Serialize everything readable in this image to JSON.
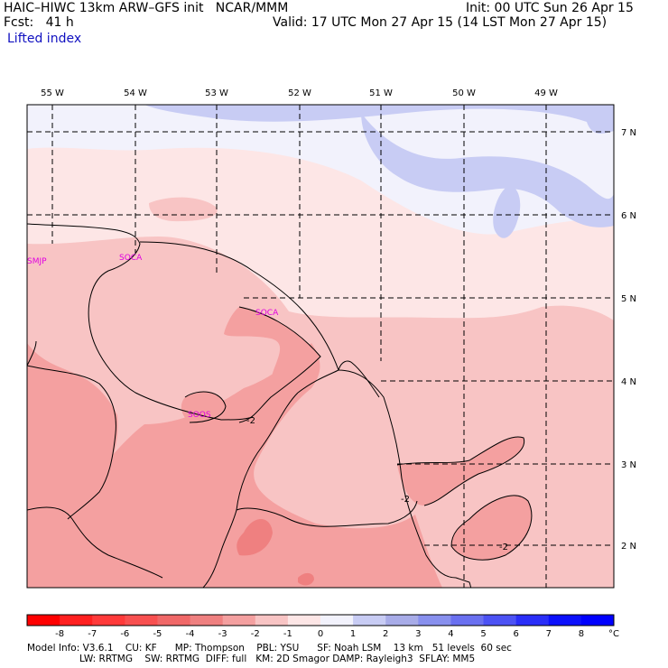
{
  "header": {
    "model_line": "HAIC–HIWC 13km ARW–GFS init   NCAR/MMM",
    "fcst_line": "Fcst:   41 h",
    "init_line": "Init: 00 UTC Sun 26 Apr 15",
    "valid_line": "Valid: 17 UTC Mon 27 Apr 15 (14 LST Mon 27 Apr 15)",
    "field_name": "Lifted index"
  },
  "map": {
    "lon_labels": [
      "55 W",
      "54 W",
      "53 W",
      "52 W",
      "51 W",
      "50 W",
      "49 W"
    ],
    "lat_labels": [
      "7 N",
      "6 N",
      "5 N",
      "4 N",
      "3 N",
      "2 N"
    ],
    "stations": [
      "SMJP",
      "SOCA",
      "SOCA",
      "SOOS"
    ],
    "contour_labels": [
      "-2",
      "-2",
      "-2"
    ]
  },
  "colorbar": {
    "levels": [
      "-8",
      "-7",
      "-6",
      "-5",
      "-4",
      "-3",
      "-2",
      "-1",
      "0",
      "1",
      "2",
      "3",
      "4",
      "5",
      "6",
      "7",
      "8"
    ],
    "unit": "°C",
    "colors": [
      "#ff0000",
      "#ff2020",
      "#ff3a3a",
      "#f85050",
      "#f06868",
      "#ef8080",
      "#f4a0a0",
      "#f8c4c4",
      "#fde6e6",
      "#f2f2fc",
      "#c8ccf4",
      "#a8ace8",
      "#8890ee",
      "#6a70f0",
      "#4c52f4",
      "#2a2ef8",
      "#0c10fc",
      "#0000ff"
    ]
  },
  "footer": {
    "line1": "Model Info: V3.6.1    CU: KF      MP: Thompson    PBL: YSU      SF: Noah LSM    13 km   51 levels  60 sec",
    "line2": "LW: RRTMG    SW: RRTMG  DIFF: full   KM: 2D Smagor DAMP: Rayleigh3  SFLAY: MM5"
  }
}
